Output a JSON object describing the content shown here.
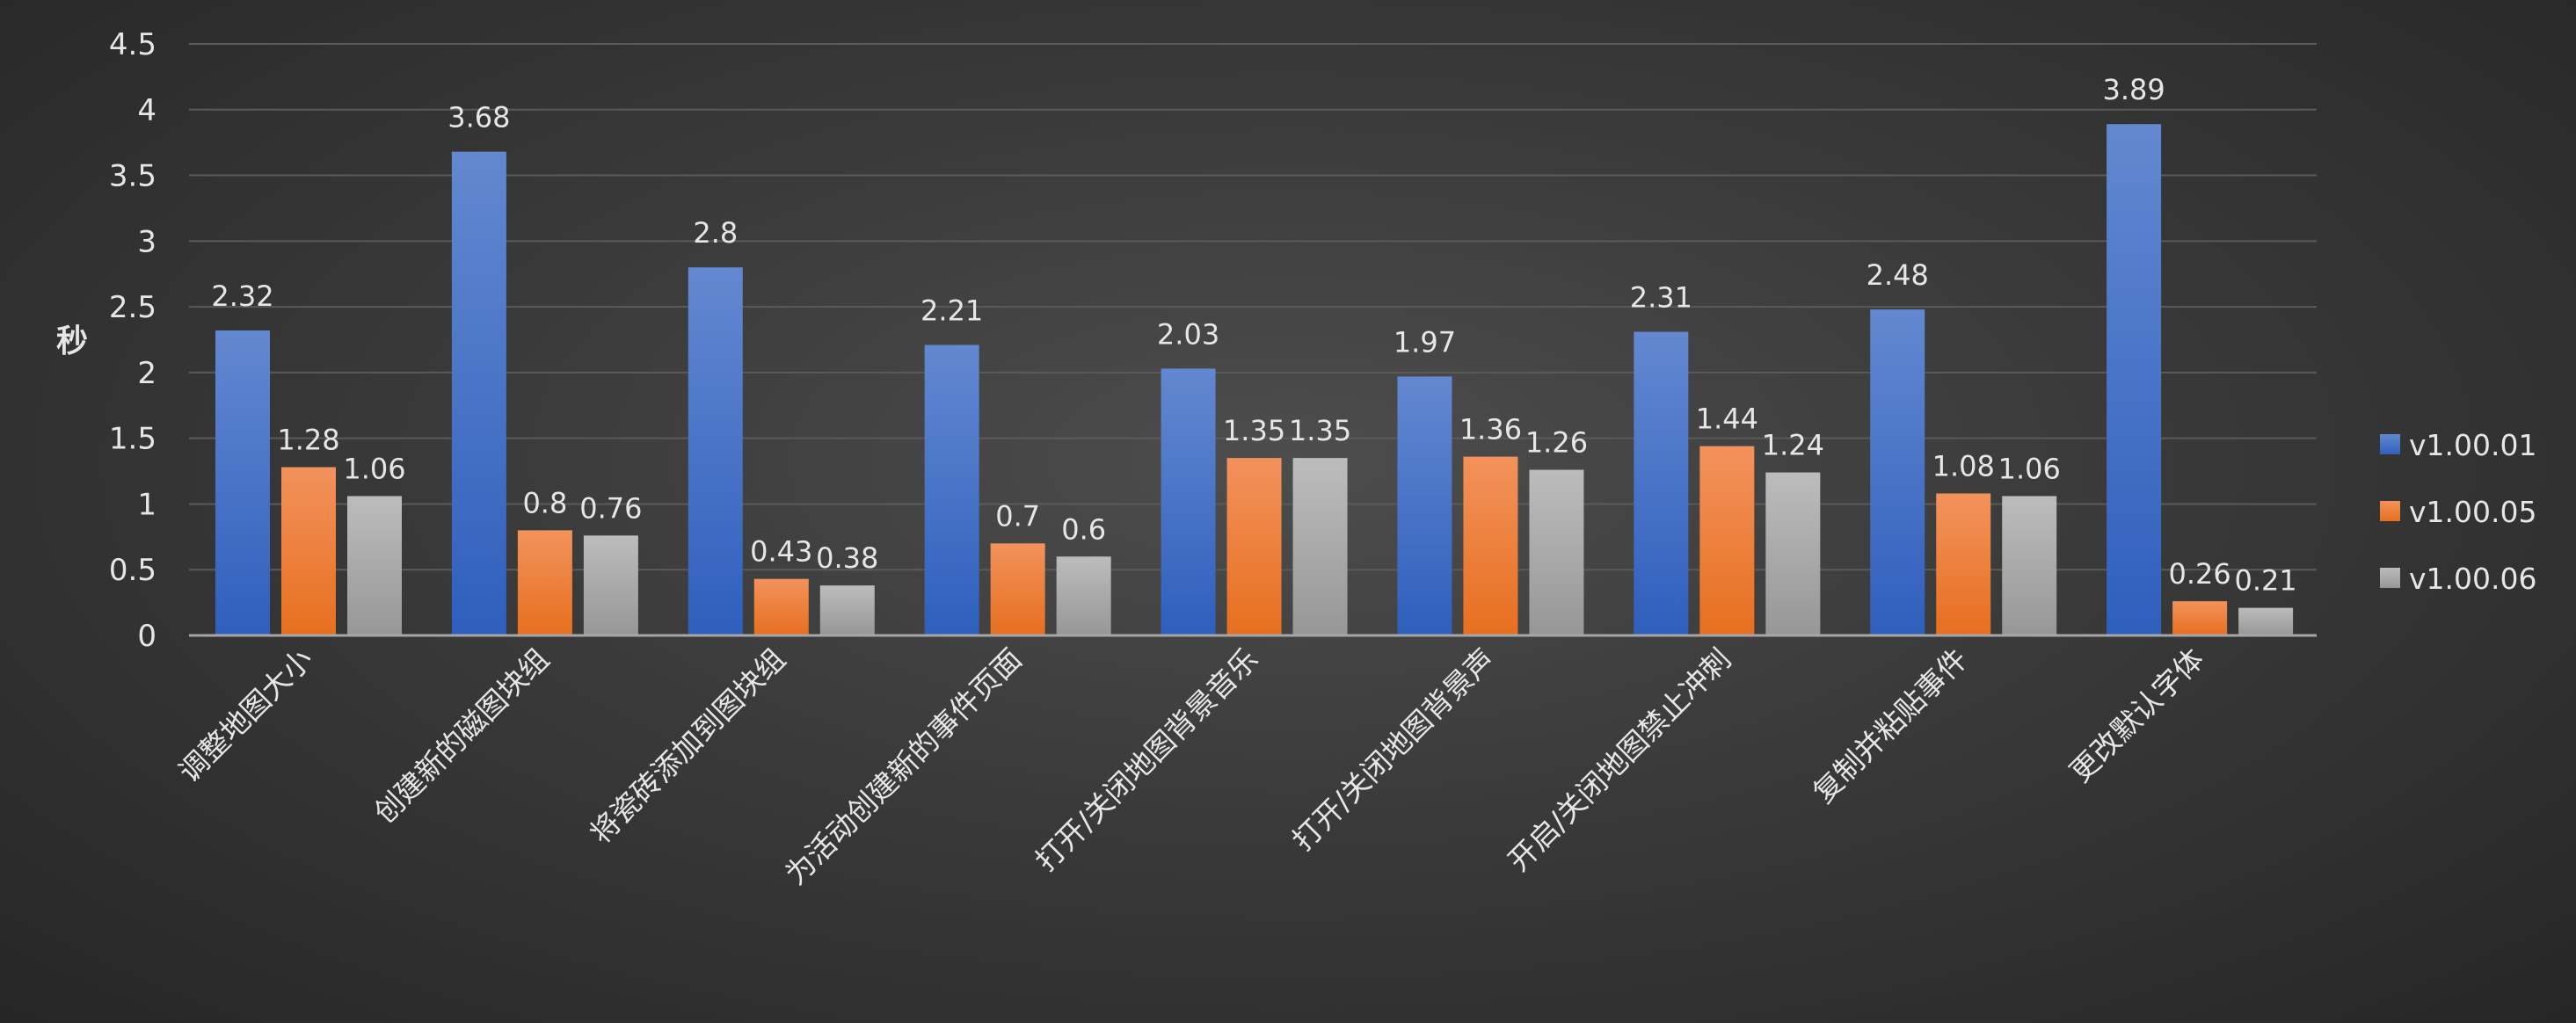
{
  "chart_data": {
    "type": "bar",
    "title": "",
    "xlabel": "",
    "ylabel": "秒",
    "ylim": [
      0,
      4.5
    ],
    "yticks": [
      "0",
      "0.5",
      "1",
      "1.5",
      "2",
      "2.5",
      "3",
      "3.5",
      "4",
      "4.5"
    ],
    "grid": true,
    "legend_position": "right",
    "categories": [
      "调整地图大小",
      "创建新的磁图块组",
      "将瓷砖添加到图块组",
      "为活动创建新的事件页面",
      "打开/关闭地图背景音乐",
      "打开/关闭地图背景声",
      "开启/关闭地图禁止冲刺",
      "复制并粘贴事件",
      "更改默认字体"
    ],
    "series": [
      {
        "name": "v1.00.01",
        "color": "#4472c4",
        "values": [
          2.32,
          3.68,
          2.8,
          2.21,
          2.03,
          1.97,
          2.31,
          2.48,
          3.89
        ]
      },
      {
        "name": "v1.00.05",
        "color": "#ed7d31",
        "values": [
          1.28,
          0.8,
          0.43,
          0.7,
          1.35,
          1.36,
          1.44,
          1.08,
          0.26
        ]
      },
      {
        "name": "v1.00.06",
        "color": "#a5a5a5",
        "values": [
          1.06,
          0.76,
          0.38,
          0.6,
          1.35,
          1.26,
          1.24,
          1.06,
          0.21
        ]
      }
    ]
  }
}
